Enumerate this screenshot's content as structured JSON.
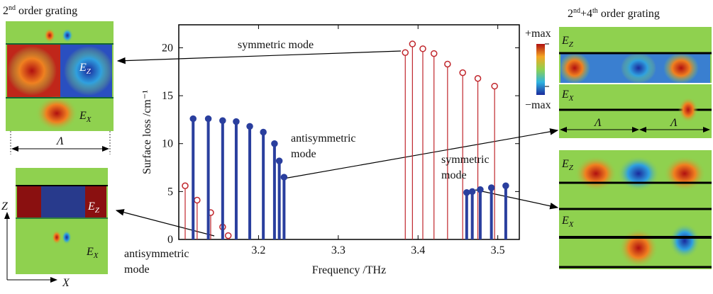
{
  "chart_data": {
    "type": "stem",
    "xlabel": "Frequency /THz",
    "ylabel": "Surface loss /cm⁻¹",
    "xlim": [
      3.1,
      3.527
    ],
    "ylim": [
      0,
      22.4
    ],
    "xticks": [
      3.2,
      3.3,
      3.4,
      3.5
    ],
    "yticks": [
      0,
      5,
      10,
      15,
      20
    ],
    "series": [
      {
        "color": "#c0262c",
        "width": 1.2,
        "x": [
          3.108,
          3.123,
          3.14,
          3.155,
          3.162,
          3.384,
          3.393,
          3.406,
          3.42,
          3.437,
          3.456,
          3.475,
          3.496
        ],
        "values": [
          5.6,
          4.1,
          2.8,
          1.3,
          0.4,
          19.5,
          20.4,
          19.9,
          19.4,
          18.3,
          17.4,
          16.8,
          16.0
        ]
      },
      {
        "color": "#2a3f9e",
        "width": 4,
        "x": [
          3.118,
          3.137,
          3.155,
          3.172,
          3.189,
          3.206,
          3.22,
          3.226,
          3.232,
          3.461,
          3.468,
          3.478,
          3.492,
          3.51
        ],
        "values": [
          12.6,
          12.6,
          12.4,
          12.3,
          11.8,
          11.2,
          10.0,
          8.2,
          6.5,
          4.9,
          5.0,
          5.2,
          5.4,
          5.6
        ]
      }
    ],
    "annotations": [
      {
        "lines": [
          "symmetric mode"
        ]
      },
      {
        "lines": [
          "antisymmetric",
          "mode"
        ]
      },
      {
        "lines": [
          "symmetric",
          "mode"
        ]
      },
      {
        "lines": [
          "antisymmetric",
          "mode"
        ]
      }
    ],
    "colorbar": {
      "max_label": "+max",
      "min_label": "−max"
    }
  },
  "figure": {
    "left_title": {
      "base": "2",
      "sup": "nd",
      "rest": " order grating"
    },
    "right_title": {
      "base1": "2",
      "sup1": "nd",
      "mid": "+4",
      "sup2": "th",
      "rest": " order grating"
    },
    "field_main": "E",
    "sub_z": "Z",
    "sub_x": "X",
    "period": "Λ",
    "axis_z": "Z",
    "axis_x": "X"
  }
}
